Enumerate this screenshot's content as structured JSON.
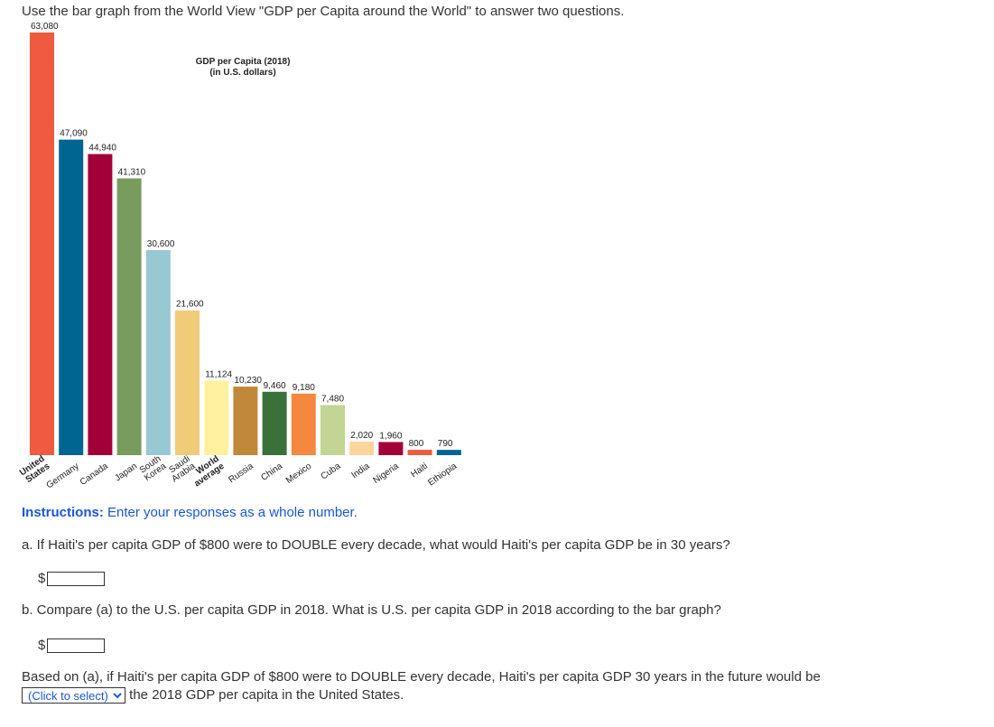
{
  "intro": "Use the bar graph from the World View \"GDP per Capita around the World\" to answer two questions.",
  "chart_data": {
    "type": "bar",
    "title": "GDP per Capita (2018)",
    "subtitle": "(in U.S. dollars)",
    "ylim": [
      0,
      63080
    ],
    "grid": false,
    "categories": [
      [
        "United",
        "States"
      ],
      [
        "Germany"
      ],
      [
        "Canada"
      ],
      [
        "Japan"
      ],
      [
        "South",
        "Korea"
      ],
      [
        "Saudi",
        "Arabia"
      ],
      [
        "World",
        "average"
      ],
      [
        "Russia"
      ],
      [
        "China"
      ],
      [
        "Mexico"
      ],
      [
        "Cuba"
      ],
      [
        "India"
      ],
      [
        "Nigeria"
      ],
      [
        "Haiti"
      ],
      [
        "Ethiopia"
      ]
    ],
    "bold_categories": [
      0,
      6
    ],
    "values": [
      63080,
      47090,
      44940,
      41310,
      30600,
      21600,
      11124,
      10230,
      9460,
      9180,
      7480,
      2020,
      1960,
      800,
      790
    ],
    "value_labels": [
      "63,080",
      "47,090",
      "44,940",
      "41,310",
      "30,600",
      "21,600",
      "11,124",
      "10,230",
      "9,460",
      "9,180",
      "7,480",
      "2,020",
      "1,960",
      "800",
      "790"
    ],
    "colors": [
      "#f05a40",
      "#006591",
      "#a3003a",
      "#779c5e",
      "#98c8d1",
      "#f0cc78",
      "#fff1a0",
      "#c1883a",
      "#3a7039",
      "#f58840",
      "#c2d593",
      "#fdd59c",
      "#a3003a",
      "#f05a40",
      "#006591"
    ]
  },
  "instructions": {
    "label": "Instructions:",
    "text": "Enter your responses as a whole number."
  },
  "question_a": {
    "text": "a. If Haiti's per capita GDP of $800 were to DOUBLE every decade, what would Haiti's per capita GDP be in 30 years?",
    "currency": "$",
    "value": ""
  },
  "question_b": {
    "text": "b. Compare (a) to the U.S. per capita GDP in 2018. What is U.S. per capita GDP in 2018 according to the bar graph?",
    "currency": "$",
    "value": ""
  },
  "final": {
    "before": "Based on (a), if Haiti's per capita GDP of $800 were to DOUBLE every decade, Haiti's per capita GDP 30 years in the future would be",
    "select_label": "(Click to select)",
    "after": "the 2018 GDP per capita in the United States."
  }
}
